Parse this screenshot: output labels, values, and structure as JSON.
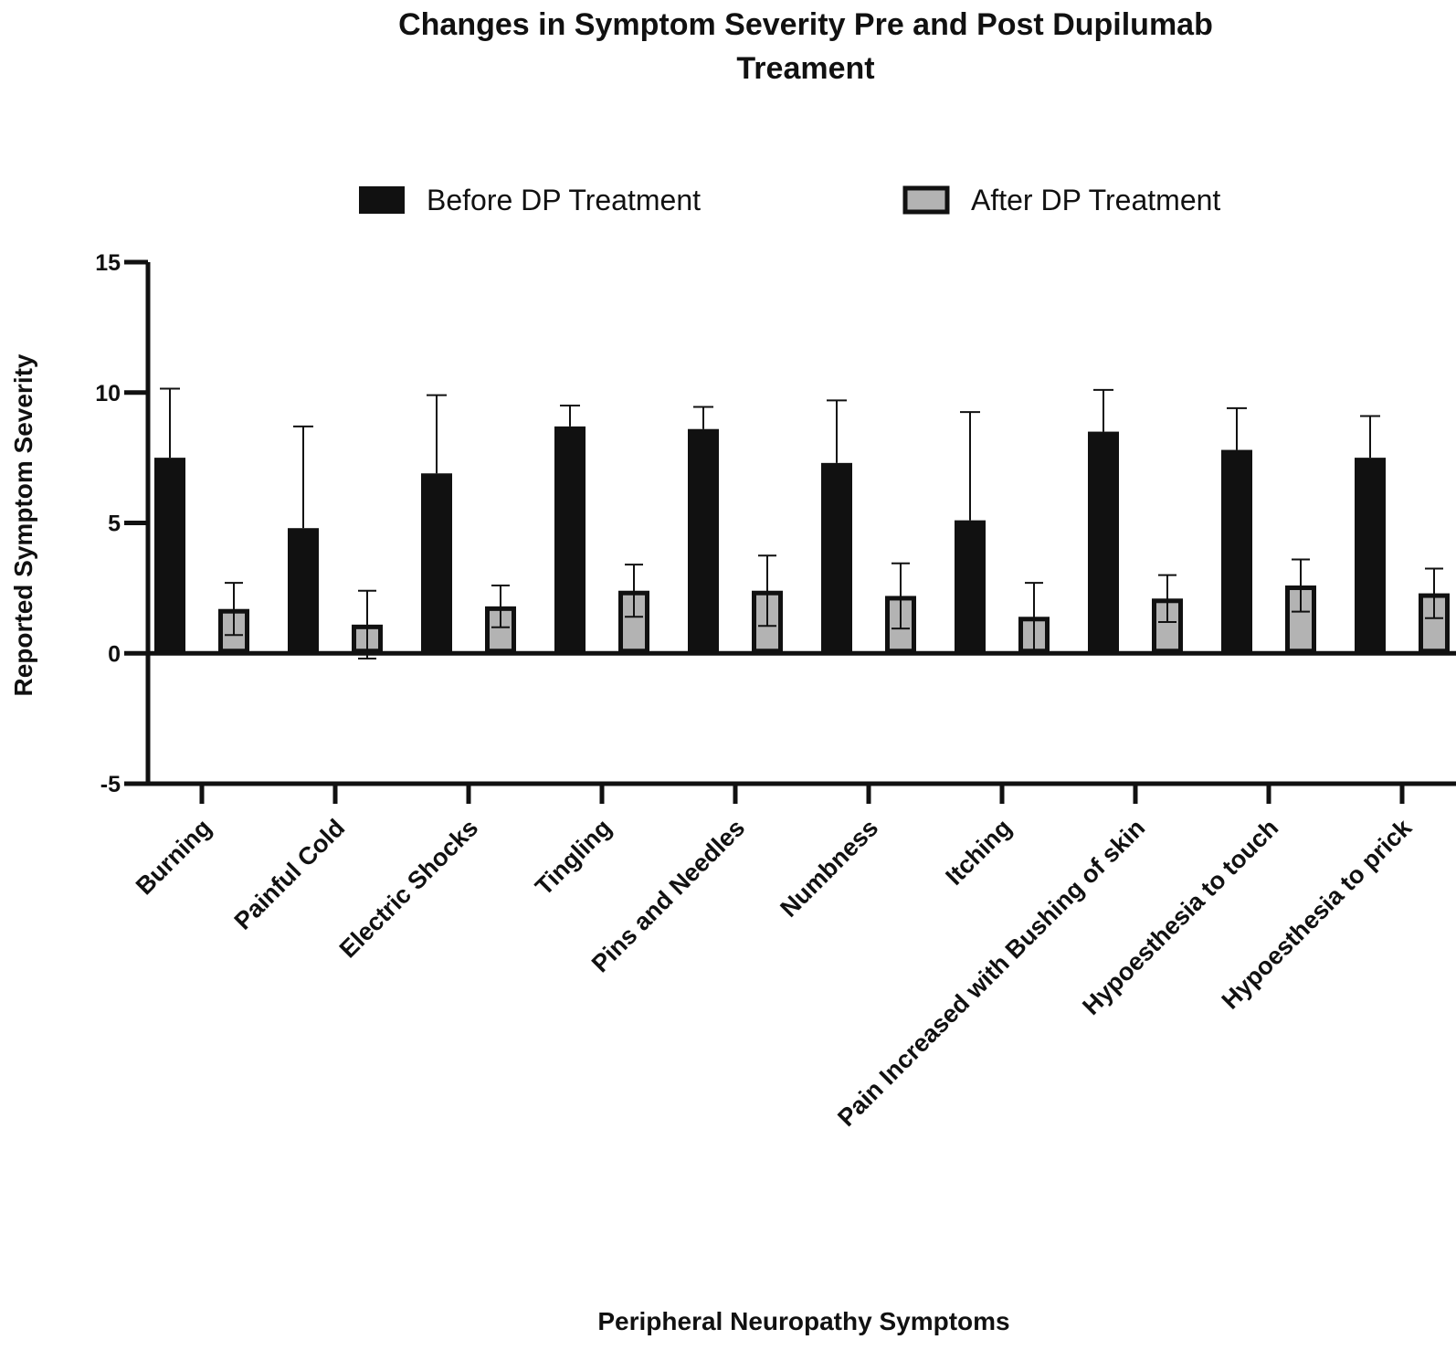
{
  "chart_data": {
    "type": "bar",
    "title_lines": [
      "Changes in Symptom Severity Pre and Post Dupilumab",
      "Treament"
    ],
    "xlabel": "Peripheral Neuropathy Symptoms",
    "ylabel": "Reported Symptom Severity",
    "ylim": [
      -5,
      15
    ],
    "yticks": [
      15,
      10,
      5,
      0,
      -5
    ],
    "categories": [
      "Burning",
      "Painful Cold",
      "Electric Shocks",
      "Tingling",
      "Pins and Needles",
      "Numbness",
      "Itching",
      "Pain Increased with Bushing of skin",
      "Hypoesthesia to touch",
      "Hypoesthesia to prick"
    ],
    "series": [
      {
        "name": "Before DP Treatment",
        "color": "#111111",
        "values": [
          7.5,
          4.8,
          6.9,
          8.7,
          8.6,
          7.3,
          5.1,
          8.5,
          7.8,
          7.5
        ],
        "error": [
          2.65,
          3.9,
          3.0,
          0.8,
          0.85,
          2.4,
          4.15,
          1.6,
          1.6,
          1.6
        ]
      },
      {
        "name": "After DP Treatment",
        "color": "#b3b3b3",
        "values": [
          1.7,
          1.1,
          1.8,
          2.4,
          2.4,
          2.2,
          1.4,
          2.1,
          2.6,
          2.3
        ],
        "error": [
          1.0,
          1.3,
          0.8,
          1.0,
          1.35,
          1.25,
          1.3,
          0.9,
          1.0,
          0.95
        ]
      }
    ],
    "legend": {
      "placement": "top",
      "items": [
        "Before DP Treatment",
        "After DP Treatment"
      ]
    },
    "grid": false
  }
}
